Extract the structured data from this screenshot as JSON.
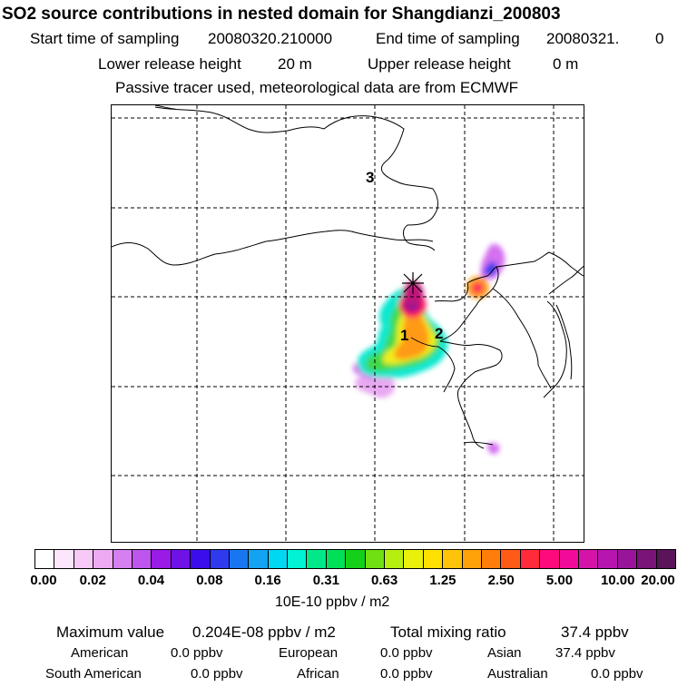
{
  "header": {
    "title": "SO2 source contributions in nested domain for Shangdianzi_200803",
    "start_label": "Start time of sampling",
    "start_value": "20080320.210000",
    "end_label": "End time of sampling",
    "end_value": "20080321.",
    "end_suffix": "0",
    "lower_label": "Lower release height",
    "lower_value": "20 m",
    "upper_label": "Upper release height",
    "upper_value": "0 m",
    "note": "Passive tracer used, meteorological data are from ECMWF"
  },
  "map": {
    "labels": [
      "3",
      "1",
      "2"
    ],
    "receptor_marker": "star-cross"
  },
  "colorbar": {
    "colors": [
      "#ffffff",
      "#fde6fb",
      "#f6c9f6",
      "#eeaaf2",
      "#d67ff0",
      "#bd55ee",
      "#9a1ae6",
      "#6e12e6",
      "#3a0eea",
      "#2f3aee",
      "#1877f0",
      "#14a3f2",
      "#00d8f2",
      "#00f3d4",
      "#00e88a",
      "#00e056",
      "#14d018",
      "#70e012",
      "#b6ee10",
      "#e8f00c",
      "#ffe000",
      "#ffc40a",
      "#ffa20a",
      "#ff7e0a",
      "#ff5b16",
      "#ff2a3a",
      "#ff0a7c",
      "#f20a9a",
      "#d414a8",
      "#b814b0",
      "#9a149a",
      "#7a1478",
      "#5a145a"
    ],
    "tick_labels": [
      "0.00",
      "0.02",
      "0.04",
      "0.08",
      "0.16",
      "0.31",
      "0.63",
      "1.25",
      "2.50",
      "5.00",
      "10.00",
      "20.00"
    ],
    "units": "10E-10 ppbv / m2"
  },
  "summary": {
    "max_label": "Maximum value",
    "max_value": "0.204E-08 ppbv / m2",
    "total_label": "Total mixing ratio",
    "total_value": "37.4 ppbv",
    "regions": [
      {
        "name": "American",
        "value": "0.0 ppbv"
      },
      {
        "name": "European",
        "value": "0.0 ppbv"
      },
      {
        "name": "Asian",
        "value": "37.4 ppbv"
      },
      {
        "name": "South American",
        "value": "0.0 ppbv"
      },
      {
        "name": "African",
        "value": "0.0 ppbv"
      },
      {
        "name": "Australian",
        "value": "0.0 ppbv"
      }
    ]
  }
}
